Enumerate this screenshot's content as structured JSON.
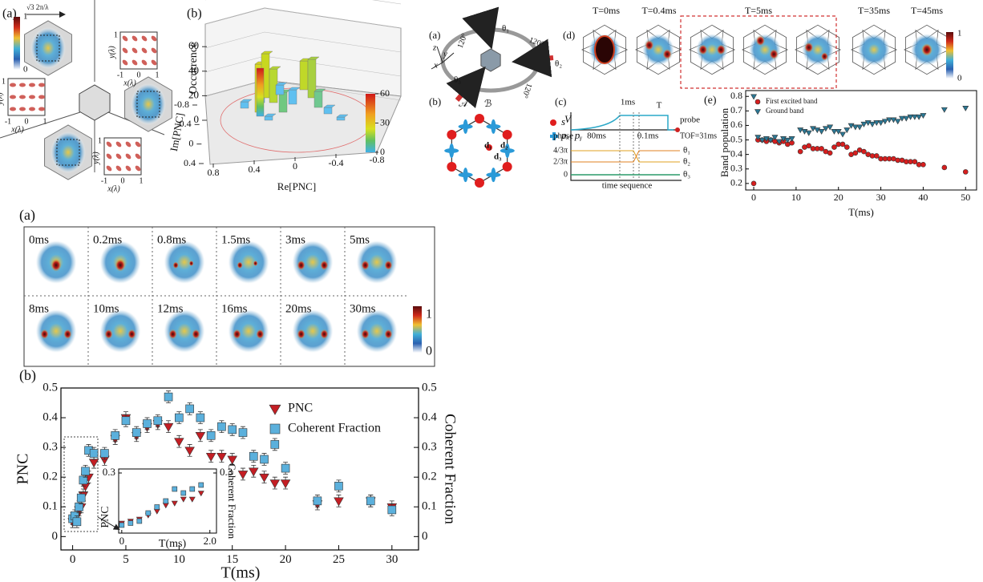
{
  "chart_data": [
    {
      "type": "scatter",
      "label": "(b)",
      "xlabel": "T(ms)",
      "ylabel": "PNC",
      "y2label": "Coherent Fraction",
      "xlim": [
        -1.1,
        32.5
      ],
      "ylim": [
        -0.045,
        0.5
      ],
      "y2lim": [
        -0.045,
        0.5
      ],
      "xticks": [
        0,
        5,
        10,
        15,
        20,
        25,
        30
      ],
      "yticks": [
        0,
        0.1,
        0.2,
        0.3,
        0.4,
        0.5
      ],
      "y2ticks": [
        0,
        0.1,
        0.2,
        0.3,
        0.4,
        0.5
      ],
      "legend": "upper right",
      "x": [
        0,
        0.2,
        0.4,
        0.6,
        0.8,
        1,
        1.2,
        1.5,
        2,
        3,
        4,
        5,
        6,
        7,
        8,
        9,
        10,
        11,
        12,
        13,
        14,
        15,
        16,
        17,
        18,
        19,
        20,
        23,
        25,
        28,
        30
      ],
      "series": [
        {
          "name": "PNC",
          "color": "#c41e24",
          "marker": "triangle",
          "values": [
            0.05,
            0.06,
            0.07,
            0.09,
            0.1,
            0.14,
            0.17,
            0.2,
            0.25,
            0.26,
            0.33,
            0.4,
            0.34,
            0.37,
            0.38,
            0.37,
            0.32,
            0.29,
            0.34,
            0.27,
            0.27,
            0.26,
            0.21,
            0.22,
            0.2,
            0.18,
            0.18,
            0.11,
            0.12,
            0.12,
            0.1
          ],
          "errors": [
            0.02,
            0.02,
            0.02,
            0.02,
            0.02,
            0.02,
            0.02,
            0.02,
            0.02,
            0.02,
            0.02,
            0.02,
            0.02,
            0.02,
            0.02,
            0.02,
            0.02,
            0.02,
            0.02,
            0.02,
            0.02,
            0.02,
            0.02,
            0.02,
            0.02,
            0.02,
            0.02,
            0.02,
            0.02,
            0.02,
            0.02
          ]
        },
        {
          "name": "Coherent Fraction",
          "color": "#5bb0dc",
          "marker": "square",
          "axis": "y2",
          "values": [
            0.06,
            0.07,
            0.05,
            0.1,
            0.13,
            0.19,
            0.22,
            0.29,
            0.28,
            0.28,
            0.34,
            0.39,
            0.35,
            0.38,
            0.39,
            0.47,
            0.4,
            0.43,
            0.4,
            0.34,
            0.37,
            0.36,
            0.35,
            0.27,
            0.26,
            0.31,
            0.23,
            0.12,
            0.17,
            0.12,
            0.09
          ],
          "errors": [
            0.02,
            0.02,
            0.02,
            0.02,
            0.02,
            0.02,
            0.02,
            0.02,
            0.02,
            0.02,
            0.02,
            0.02,
            0.02,
            0.02,
            0.02,
            0.02,
            0.02,
            0.02,
            0.02,
            0.02,
            0.02,
            0.02,
            0.02,
            0.02,
            0.02,
            0.02,
            0.02,
            0.02,
            0.02,
            0.02,
            0.02
          ]
        }
      ]
    },
    {
      "type": "scatter",
      "xlabel": "T(ms)",
      "ylabel": "PNC",
      "y2label": "Coherent Fraction",
      "xlim": [
        -0.07,
        2.15
      ],
      "ylim": [
        0,
        0.32
      ],
      "y2lim": [
        0,
        0.32
      ],
      "xticks": [
        0,
        {
          "value": 2,
          "label": "2.0"
        }
      ],
      "yticks": [
        0.3
      ],
      "y2ticks": [
        0.3
      ],
      "x": [
        0,
        0.2,
        0.4,
        0.6,
        0.8,
        1.0,
        1.2,
        1.4,
        1.6,
        1.8
      ],
      "series": [
        {
          "color": "#c41e24",
          "marker": "triangle",
          "values": [
            0.05,
            0.06,
            0.07,
            0.09,
            0.11,
            0.14,
            0.15,
            0.17,
            0.17,
            0.2
          ]
        },
        {
          "color": "#5bb0dc",
          "marker": "square",
          "axis": "y2",
          "values": [
            0.04,
            0.05,
            0.06,
            0.1,
            0.13,
            0.16,
            0.22,
            0.2,
            0.22,
            0.24
          ]
        }
      ]
    },
    {
      "type": "scatter",
      "label": "(e)",
      "xlabel": "T(ms)",
      "ylabel": "Band population",
      "xlim": [
        -1.9,
        52.6
      ],
      "ylim": [
        0.155,
        0.84
      ],
      "xticks": [
        0,
        10,
        20,
        30,
        40,
        50
      ],
      "yticks": [
        0.2,
        0.3,
        0.4,
        0.5,
        0.6,
        0.7,
        0.8
      ],
      "legend": "upper left",
      "x": [
        0,
        1,
        2,
        3,
        4,
        5,
        6,
        7,
        8,
        9,
        11,
        12,
        13,
        14,
        15,
        16,
        17,
        18,
        19,
        20,
        21,
        22,
        23,
        24,
        25,
        26,
        27,
        28,
        29,
        30,
        31,
        32,
        33,
        34,
        35,
        36,
        37,
        38,
        39,
        40,
        45,
        50
      ],
      "series": [
        {
          "name": "First excited band",
          "color": "#d71e1e",
          "marker": "circle",
          "values": [
            0.2,
            0.5,
            0.5,
            0.49,
            0.5,
            0.49,
            0.48,
            0.49,
            0.47,
            0.48,
            0.42,
            0.45,
            0.46,
            0.44,
            0.44,
            0.44,
            0.42,
            0.41,
            0.45,
            0.47,
            0.47,
            0.45,
            0.4,
            0.41,
            0.43,
            0.42,
            0.4,
            0.39,
            0.39,
            0.37,
            0.37,
            0.37,
            0.37,
            0.36,
            0.36,
            0.35,
            0.35,
            0.35,
            0.33,
            0.33,
            0.31,
            0.28
          ]
        },
        {
          "name": "Ground band",
          "color": "#2b7895",
          "marker": "triangle",
          "values": [
            0.8,
            0.52,
            0.5,
            0.51,
            0.5,
            0.52,
            0.49,
            0.51,
            0.5,
            0.51,
            0.57,
            0.56,
            0.55,
            0.58,
            0.57,
            0.56,
            0.58,
            0.59,
            0.56,
            0.56,
            0.54,
            0.57,
            0.6,
            0.59,
            0.59,
            0.61,
            0.62,
            0.61,
            0.62,
            0.62,
            0.63,
            0.64,
            0.64,
            0.63,
            0.65,
            0.65,
            0.66,
            0.66,
            0.66,
            0.67,
            0.71,
            0.72
          ]
        }
      ]
    },
    {
      "type": "bar3d",
      "label": "(b)",
      "zlabel": "Occurrence",
      "ylabel": "Im[PNC]",
      "xlabel": "Re[PNC]",
      "zticks": [
        0,
        20,
        40,
        60
      ],
      "yticks": [
        -0.8,
        -0.4,
        0,
        0.4
      ],
      "xticks": [
        0.8,
        0.4,
        0,
        -0.4,
        -0.8
      ],
      "colorbar_ticks": [
        60,
        30,
        0
      ]
    }
  ],
  "lattice_panel": {
    "label": "(a)",
    "scale_label": "√3 2π/λ",
    "colorbar_ticks": [
      1,
      0
    ],
    "insets": [
      {
        "ylabel": "y(λ)",
        "xlabel": "x(λ)",
        "ticks": [
          -1,
          0,
          1
        ]
      },
      {
        "ylabel": "y(λ)",
        "xlabel": "x(λ)",
        "ticks": [
          -1,
          0,
          1
        ]
      },
      {
        "ylabel": "y(λ)",
        "xlabel": "x(λ)",
        "ticks": [
          -1,
          0,
          1
        ]
      }
    ]
  },
  "schematic": {
    "label": "(a)",
    "angles": [
      "120°",
      "120°",
      "120°"
    ],
    "phases": [
      "θ₁",
      "θ₂",
      "θ₃"
    ],
    "axes": [
      "z",
      "y",
      "x"
    ]
  },
  "honeycomb": {
    "label": "(b)",
    "sublattices": [
      "𝒜",
      "ℬ"
    ],
    "orbitals": [
      "s",
      "pₓ, pᵧ"
    ],
    "bonds": [
      "d₁",
      "d₂",
      "d₃"
    ]
  },
  "timing": {
    "label": "(c)",
    "depth": "V",
    "pulse": "1ms",
    "hold": "T",
    "probe": "probe",
    "phase": "phase",
    "ramp": "80ms",
    "switch": "0.1ms",
    "tof": "TOF=31ms",
    "levels": [
      "4/3π",
      "2/3π",
      "0"
    ],
    "phases": [
      "θ₁",
      "θ₂",
      "θ₃"
    ],
    "xlabel": "time sequence"
  },
  "snapshots": {
    "label": "(d)",
    "frames": [
      "T=0ms",
      "T=0.4ms",
      "T=5ms",
      "T=35ms",
      "T=45ms"
    ],
    "colorbar_ticks": [
      1,
      0
    ]
  },
  "image_strip": {
    "label": "(a)",
    "frames": [
      "0ms",
      "0.2ms",
      "0.8ms",
      "1.5ms",
      "3ms",
      "5ms",
      "8ms",
      "10ms",
      "12ms",
      "16ms",
      "20ms",
      "30ms"
    ],
    "colorbar_ticks": [
      1,
      0
    ]
  }
}
